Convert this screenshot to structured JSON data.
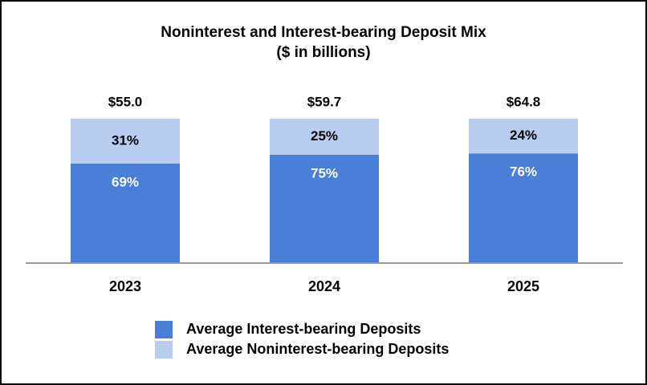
{
  "chart_data": {
    "type": "stacked_bar_percent",
    "title": "Noninterest and Interest-bearing Deposit Mix",
    "subtitle": "($ in billions)",
    "categories": [
      "2023",
      "2024",
      "2025"
    ],
    "totals": [
      55.0,
      59.7,
      64.8
    ],
    "total_labels": [
      "$55.0",
      "$59.7",
      "$64.8"
    ],
    "series": [
      {
        "name": "Average Interest-bearing Deposits",
        "color": "#4a7fd8",
        "label_color": "#ffffff",
        "values": [
          69,
          75,
          76
        ],
        "value_labels": [
          "69%",
          "75%",
          "76%"
        ]
      },
      {
        "name": "Average Noninterest-bearing Deposits",
        "color": "#b9cdf1",
        "label_color": "#000000",
        "values": [
          31,
          25,
          24
        ],
        "value_labels": [
          "31%",
          "25%",
          "24%"
        ]
      }
    ],
    "ylim": [
      0,
      100
    ]
  }
}
